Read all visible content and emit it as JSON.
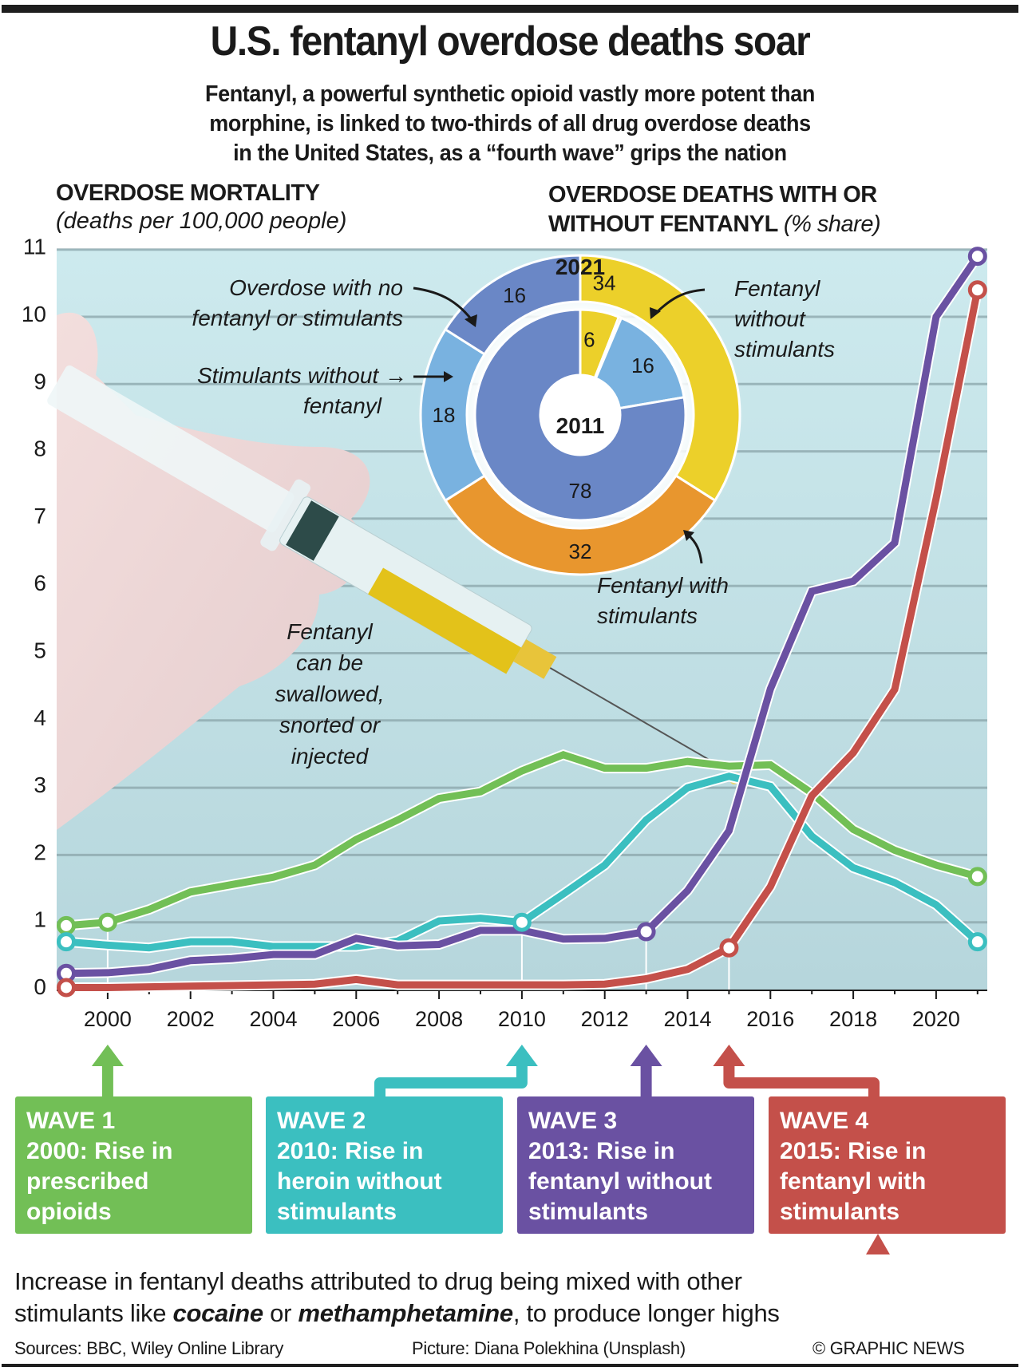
{
  "header": {
    "title": "U.S. fentanyl overdose deaths soar",
    "subtitle_lines": [
      "Fentanyl, a powerful synthetic opioid vastly more potent than",
      "morphine, is linked to two-thirds of all drug overdose deaths",
      "in the United States, as a “fourth wave” grips the nation"
    ]
  },
  "left_panel": {
    "heading": "OVERDOSE MORTALITY",
    "subheading": "(deaths per 100,000 people)"
  },
  "right_panel": {
    "heading_line1": "OVERDOSE DEATHS WITH OR",
    "heading_line2": "WITHOUT FENTANYL",
    "heading_unit": "(% share)"
  },
  "photo_caption": [
    "Fentanyl",
    "can be",
    "swallowed,",
    "snorted or",
    "injected"
  ],
  "colors": {
    "wave1": "#72bf56",
    "wave2": "#3bbfc0",
    "wave3": "#6a51a2",
    "wave4": "#c4504a",
    "fentanyl_without_stimulants": "#ecd02a",
    "fentanyl_with_stimulants": "#e8962e",
    "stimulants_without_fentanyl": "#79b2e0",
    "no_fentanyl_or_stimulants": "#6a87c6",
    "plot_bg": "#c4e2e6"
  },
  "chart_data": [
    {
      "type": "line",
      "title": "OVERDOSE MORTALITY",
      "ylabel": "deaths per 100,000 people",
      "xlabel": "",
      "ylim": [
        0,
        11
      ],
      "xlim": [
        1999,
        2021
      ],
      "grid": true,
      "yticks": [
        0,
        1,
        2,
        3,
        4,
        5,
        6,
        7,
        8,
        9,
        10,
        11
      ],
      "xtick_labels": [
        "2000",
        "2002",
        "2004",
        "2006",
        "2008",
        "2010",
        "2012",
        "2014",
        "2016",
        "2018",
        "2020"
      ],
      "x": [
        1999,
        2000,
        2001,
        2002,
        2003,
        2004,
        2005,
        2006,
        2007,
        2008,
        2009,
        2010,
        2011,
        2012,
        2013,
        2014,
        2015,
        2016,
        2017,
        2018,
        2019,
        2020,
        2021
      ],
      "series": [
        {
          "name": "Prescribed opioids",
          "color_key": "wave1",
          "values": [
            0.95,
            1.0,
            1.19,
            1.45,
            1.56,
            1.67,
            1.85,
            2.23,
            2.52,
            2.84,
            2.94,
            3.25,
            3.49,
            3.29,
            3.29,
            3.39,
            3.32,
            3.34,
            2.92,
            2.38,
            2.07,
            1.85,
            1.68
          ],
          "marked_years": [
            1999,
            2000,
            2021
          ]
        },
        {
          "name": "Heroin without stimulants",
          "color_key": "wave2",
          "values": [
            0.71,
            0.66,
            0.62,
            0.71,
            0.71,
            0.64,
            0.64,
            0.64,
            0.72,
            1.02,
            1.06,
            1.0,
            1.42,
            1.85,
            2.52,
            3.0,
            3.17,
            3.02,
            2.28,
            1.81,
            1.59,
            1.26,
            0.71
          ],
          "marked_years": [
            1999,
            2010,
            2021
          ]
        },
        {
          "name": "Fentanyl without stimulants",
          "color_key": "wave3",
          "values": [
            0.24,
            0.25,
            0.3,
            0.43,
            0.46,
            0.52,
            0.52,
            0.76,
            0.65,
            0.67,
            0.88,
            0.88,
            0.75,
            0.76,
            0.86,
            1.47,
            2.36,
            4.47,
            5.92,
            6.07,
            6.64,
            10.0,
            10.9
          ],
          "marked_years": [
            1999,
            2013,
            2021
          ]
        },
        {
          "name": "Fentanyl with stimulants",
          "color_key": "wave4",
          "values": [
            0.03,
            0.03,
            0.04,
            0.05,
            0.06,
            0.07,
            0.08,
            0.15,
            0.07,
            0.07,
            0.07,
            0.07,
            0.07,
            0.08,
            0.16,
            0.3,
            0.62,
            1.53,
            2.88,
            3.52,
            4.46,
            7.3,
            10.4
          ],
          "marked_years": [
            1999,
            2015,
            2021
          ]
        }
      ]
    },
    {
      "type": "pie",
      "title": "OVERDOSE DEATHS WITH OR WITHOUT FENTANYL (% share)",
      "rings": [
        {
          "label": "2021",
          "position": "outer",
          "slices": [
            {
              "name": "Fentanyl without stimulants",
              "value": 34,
              "color_key": "fentanyl_without_stimulants"
            },
            {
              "name": "Fentanyl with stimulants",
              "value": 32,
              "color_key": "fentanyl_with_stimulants"
            },
            {
              "name": "Stimulants without fentanyl",
              "value": 18,
              "color_key": "stimulants_without_fentanyl"
            },
            {
              "name": "Overdose with no fentanyl or stimulants",
              "value": 16,
              "color_key": "no_fentanyl_or_stimulants"
            }
          ]
        },
        {
          "label": "2011",
          "position": "inner",
          "slices": [
            {
              "name": "Fentanyl without stimulants",
              "value": 6,
              "color_key": "fentanyl_without_stimulants"
            },
            {
              "name": "Fentanyl with stimulants",
              "value": 0.4,
              "color_key": "fentanyl_with_stimulants",
              "label_hidden": true
            },
            {
              "name": "Stimulants without fentanyl",
              "value": 16,
              "color_key": "stimulants_without_fentanyl"
            },
            {
              "name": "Overdose with no fentanyl or stimulants",
              "value": 78,
              "color_key": "no_fentanyl_or_stimulants"
            }
          ]
        }
      ],
      "annotations": {
        "no_fentanyl": [
          "Overdose with no",
          "fentanyl or stimulants"
        ],
        "stimulants_without": [
          "Stimulants without →",
          "fentanyl"
        ],
        "fentanyl_without": [
          "Fentanyl",
          "without",
          "stimulants"
        ],
        "fentanyl_with": [
          "Fentanyl with",
          "stimulants"
        ]
      }
    }
  ],
  "waves": [
    {
      "title": "WAVE 1",
      "lines": [
        "2000: Rise in",
        "prescribed",
        "opioids"
      ],
      "year": 2000,
      "color_key": "wave1"
    },
    {
      "title": "WAVE 2",
      "lines": [
        "2010: Rise in",
        "heroin without",
        "stimulants"
      ],
      "year": 2010,
      "color_key": "wave2"
    },
    {
      "title": "WAVE 3",
      "lines": [
        "2013: Rise in",
        "fentanyl without",
        "stimulants"
      ],
      "year": 2013,
      "color_key": "wave3"
    },
    {
      "title": "WAVE 4",
      "lines": [
        "2015: Rise in",
        "fentanyl with",
        "stimulants"
      ],
      "year": 2015,
      "color_key": "wave4"
    }
  ],
  "note": {
    "line1": "Increase in fentanyl deaths attributed to drug being mixed with other",
    "line2_pre": "stimulants like ",
    "line2_em1": "cocaine",
    "line2_mid": " or ",
    "line2_em2": "methamphetamine",
    "line2_post": ", to produce longer highs"
  },
  "footer": {
    "sources": "Sources: BBC, Wiley Online Library",
    "picture": "Picture: Diana Polekhina (Unsplash)",
    "credit": "© GRAPHIC NEWS"
  }
}
